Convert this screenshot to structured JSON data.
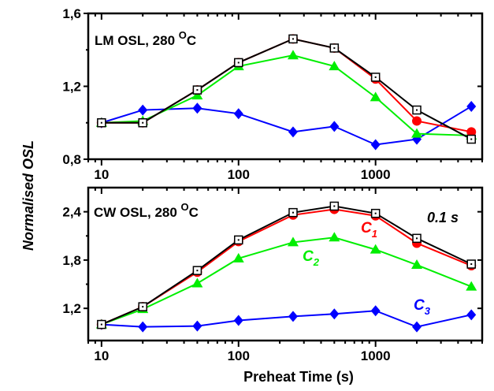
{
  "figure": {
    "ylabel": "Normalised OSL",
    "xlabel": "Preheat Time (s)"
  },
  "chart_data": [
    {
      "type": "line",
      "title": "LM OSL, 280 ",
      "title_sup": "O",
      "title_unit": "C",
      "xscale": "log",
      "xlim": [
        8,
        6000
      ],
      "ylim": [
        0.8,
        1.6
      ],
      "xticks": [
        10,
        100,
        1000
      ],
      "xtick_labels": [
        "10",
        "100",
        "1000"
      ],
      "yticks": [
        0.8,
        1.2,
        1.6
      ],
      "ytick_labels": [
        "0,8",
        "1,2",
        "1,6"
      ],
      "x": [
        10,
        20,
        50,
        100,
        250,
        500,
        1000,
        2000,
        5000
      ],
      "series": [
        {
          "key": "total",
          "color": "#000000",
          "marker": "open-square",
          "values": [
            1.0,
            1.0,
            1.18,
            1.33,
            1.46,
            1.41,
            1.25,
            1.07,
            0.91
          ]
        },
        {
          "key": "c1",
          "color": "#ff0000",
          "marker": "circle",
          "values": [
            1.0,
            1.0,
            1.18,
            1.33,
            1.46,
            1.41,
            1.24,
            1.01,
            0.95
          ]
        },
        {
          "key": "c2",
          "color": "#00ee00",
          "marker": "triangle",
          "values": [
            1.0,
            1.01,
            1.15,
            1.31,
            1.37,
            1.31,
            1.14,
            0.94,
            0.93
          ]
        },
        {
          "key": "c3",
          "color": "#0000ff",
          "marker": "diamond",
          "values": [
            1.0,
            1.07,
            1.08,
            1.05,
            0.95,
            0.98,
            0.88,
            0.91,
            1.09
          ]
        }
      ]
    },
    {
      "type": "line",
      "title": "CW OSL, 280 ",
      "title_sup": "O",
      "title_unit": "C",
      "annotation": "0.1 s",
      "xscale": "log",
      "xlim": [
        8,
        6000
      ],
      "ylim": [
        0.8,
        2.7
      ],
      "xticks": [
        10,
        100,
        1000
      ],
      "xtick_labels": [
        "10",
        "100",
        "1000"
      ],
      "yticks": [
        1.2,
        1.8,
        2.4
      ],
      "ytick_labels": [
        "1,2",
        "1,8",
        "2,4"
      ],
      "x": [
        10,
        20,
        50,
        100,
        250,
        500,
        1000,
        2000,
        5000
      ],
      "series": [
        {
          "key": "total",
          "color": "#000000",
          "marker": "open-square",
          "values": [
            1.0,
            1.22,
            1.67,
            2.05,
            2.39,
            2.47,
            2.38,
            2.07,
            1.75
          ]
        },
        {
          "key": "c1",
          "name": "C",
          "sub": "1",
          "color": "#ff0000",
          "marker": "circle",
          "values": [
            1.0,
            1.22,
            1.65,
            2.03,
            2.36,
            2.43,
            2.35,
            2.01,
            1.73
          ]
        },
        {
          "key": "c2",
          "name": "C",
          "sub": "2",
          "color": "#00ee00",
          "marker": "triangle",
          "values": [
            1.0,
            1.19,
            1.51,
            1.82,
            2.02,
            2.08,
            1.93,
            1.74,
            1.47
          ]
        },
        {
          "key": "c3",
          "name": "C",
          "sub": "3",
          "color": "#0000ff",
          "marker": "diamond",
          "values": [
            1.0,
            0.97,
            0.98,
            1.05,
            1.1,
            1.13,
            1.17,
            0.97,
            1.12
          ]
        }
      ]
    }
  ]
}
